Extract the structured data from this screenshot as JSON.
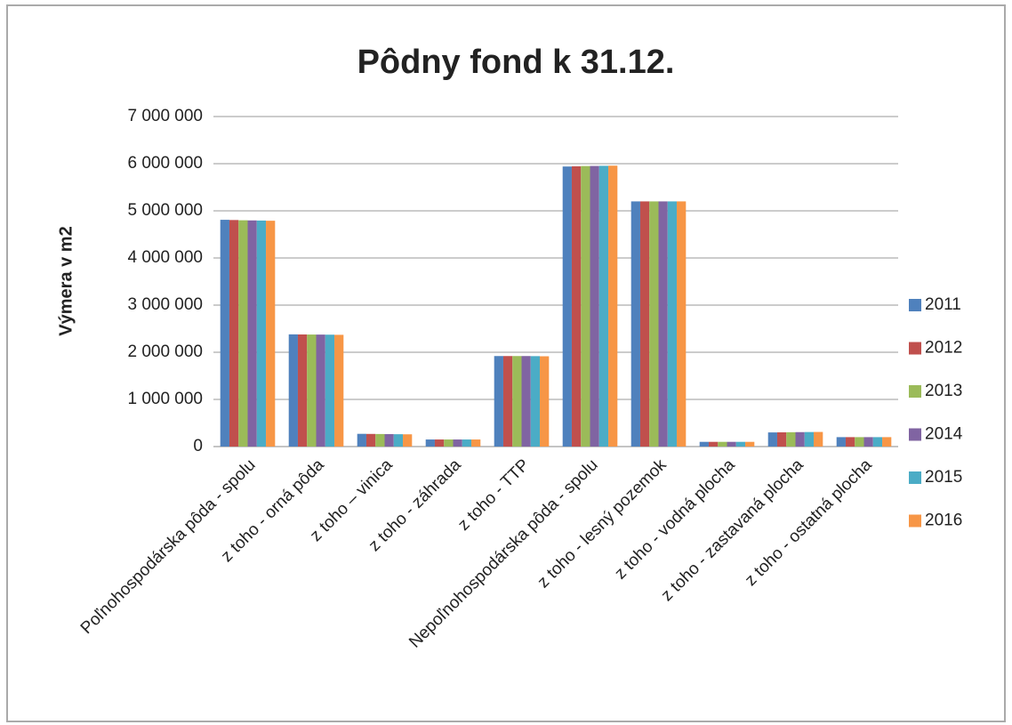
{
  "chart_data": {
    "type": "bar",
    "title": "Pôdny fond k 31.12.",
    "y_label": "Výmera v m2",
    "categories": [
      "Poľnohospodárska pôda - spolu",
      "z toho - orná pôda",
      "z toho – vinica",
      "z toho - záhrada",
      "z toho - TTP",
      "Nepoľnohospodárska pôda - spolu",
      "z toho - lesný pozemok",
      "z toho - vodná plocha",
      "z toho - zastavaná plocha",
      "z toho - ostatná plocha"
    ],
    "series": [
      {
        "name": "2011",
        "color": "#4f81bd",
        "values": [
          4810000,
          2380000,
          270000,
          150000,
          1920000,
          5940000,
          5200000,
          100000,
          300000,
          200000
        ]
      },
      {
        "name": "2012",
        "color": "#c0504d",
        "values": [
          4805000,
          2378000,
          268000,
          150000,
          1920000,
          5945000,
          5200000,
          100000,
          302000,
          200000
        ]
      },
      {
        "name": "2013",
        "color": "#9bbb59",
        "values": [
          4800000,
          2376000,
          266000,
          150000,
          1920000,
          5950000,
          5200000,
          100000,
          304000,
          200000
        ]
      },
      {
        "name": "2014",
        "color": "#8064a2",
        "values": [
          4797000,
          2375000,
          264000,
          150000,
          1920000,
          5952000,
          5200000,
          100000,
          306000,
          200000
        ]
      },
      {
        "name": "2015",
        "color": "#4bacc6",
        "values": [
          4794000,
          2373000,
          262000,
          150000,
          1918000,
          5955000,
          5200000,
          100000,
          308000,
          200000
        ]
      },
      {
        "name": "2016",
        "color": "#f79646",
        "values": [
          4790000,
          2370000,
          260000,
          150000,
          1915000,
          5958000,
          5200000,
          100000,
          310000,
          200000
        ]
      }
    ],
    "ylim": [
      0,
      7000000
    ],
    "yticks": [
      {
        "value": 0,
        "label": "0"
      },
      {
        "value": 1000000,
        "label": "1 000 000"
      },
      {
        "value": 2000000,
        "label": "2 000 000"
      },
      {
        "value": 3000000,
        "label": "3 000 000"
      },
      {
        "value": 4000000,
        "label": "4 000 000"
      },
      {
        "value": 5000000,
        "label": "5 000 000"
      },
      {
        "value": 6000000,
        "label": "6 000 000"
      },
      {
        "value": 7000000,
        "label": "7 000 000"
      }
    ],
    "grid": true,
    "legend": "right"
  }
}
